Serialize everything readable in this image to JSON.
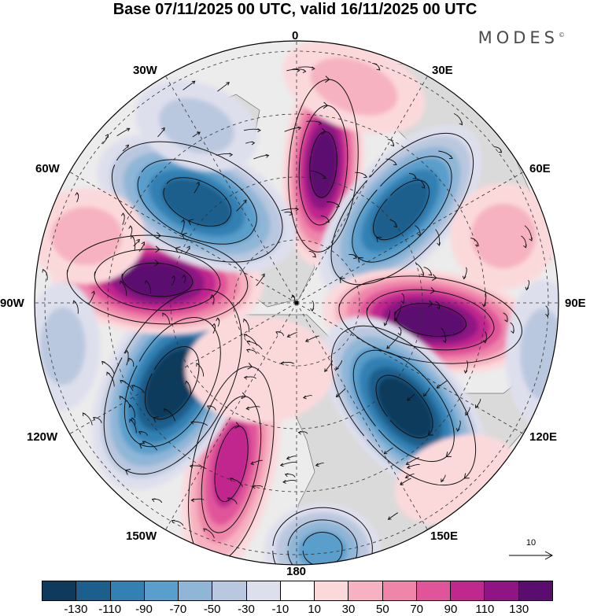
{
  "title": "Base 07/11/2025 00 UTC, valid 16/11/2025 00 UTC",
  "brand": "MODES",
  "brand_mark": "©",
  "longitude_labels": {
    "lon_0": "0",
    "lon_30e": "30E",
    "lon_60e": "60E",
    "lon_90e": "90E",
    "lon_120e": "120E",
    "lon_150e": "150E",
    "lon_180": "180",
    "lon_150w": "150W",
    "lon_120w": "120W",
    "lon_90w": "90W",
    "lon_60w": "60W",
    "lon_30w": "30W"
  },
  "reference_vector": {
    "label": "10"
  },
  "colorbar": {
    "ticks": [
      "-130",
      "-110",
      "-90",
      "-70",
      "-50",
      "-30",
      "-10",
      "10",
      "30",
      "50",
      "70",
      "90",
      "110",
      "130"
    ],
    "colors": [
      "#0f3a5c",
      "#1d5f8c",
      "#3380b3",
      "#5a9ecb",
      "#8fb6d7",
      "#bac8df",
      "#dedfed",
      "#ffffff",
      "#fbd9db",
      "#f6b2c0",
      "#ef86aa",
      "#e0549a",
      "#c0288e",
      "#8e1583",
      "#5b0d6f"
    ]
  },
  "colors": {
    "land": "#d3d3d3",
    "background": "#ececec",
    "outline": "#000000"
  }
}
